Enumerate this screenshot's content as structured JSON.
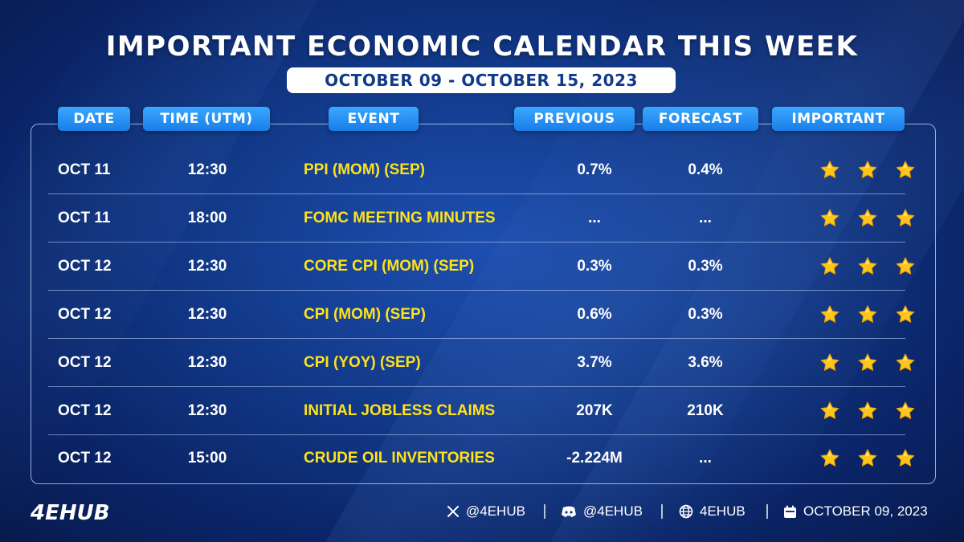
{
  "title": "IMPORTANT ECONOMIC CALENDAR THIS WEEK",
  "date_range": "OCTOBER 09 - OCTOBER 15, 2023",
  "columns": {
    "date": "DATE",
    "time": "TIME (UTM)",
    "event": "EVENT",
    "previous": "PREVIOUS",
    "forecast": "FORECAST",
    "important": "IMPORTANT"
  },
  "rows": [
    {
      "date": "OCT 11",
      "time": "12:30",
      "event": "PPI (MOM) (SEP)",
      "previous": "0.7%",
      "forecast": "0.4%",
      "stars": 3
    },
    {
      "date": "OCT 11",
      "time": "18:00",
      "event": "FOMC MEETING MINUTES",
      "previous": "...",
      "forecast": "...",
      "stars": 3
    },
    {
      "date": "OCT 12",
      "time": "12:30",
      "event": "CORE CPI (MOM) (SEP)",
      "previous": "0.3%",
      "forecast": "0.3%",
      "stars": 3
    },
    {
      "date": "OCT 12",
      "time": "12:30",
      "event": "CPI (MOM) (SEP)",
      "previous": "0.6%",
      "forecast": "0.3%",
      "stars": 3
    },
    {
      "date": "OCT 12",
      "time": "12:30",
      "event": "CPI (YOY) (SEP)",
      "previous": "3.7%",
      "forecast": "3.6%",
      "stars": 3
    },
    {
      "date": "OCT 12",
      "time": "12:30",
      "event": "INITIAL JOBLESS CLAIMS",
      "previous": "207K",
      "forecast": "210K",
      "stars": 3
    },
    {
      "date": "OCT 12",
      "time": "15:00",
      "event": "CRUDE OIL INVENTORIES",
      "previous": "-2.224M",
      "forecast": "...",
      "stars": 3
    }
  ],
  "footer": {
    "logo_text": "4EHUB",
    "x_handle": "@4EHUB",
    "discord_handle": "@4EHUB",
    "website": "4EHUB",
    "date": "OCTOBER 09, 2023"
  },
  "colors": {
    "background": "#123a8a",
    "header_pill": "#1b7de8",
    "event_text": "#ffe21a",
    "star": "#ffc61a"
  }
}
